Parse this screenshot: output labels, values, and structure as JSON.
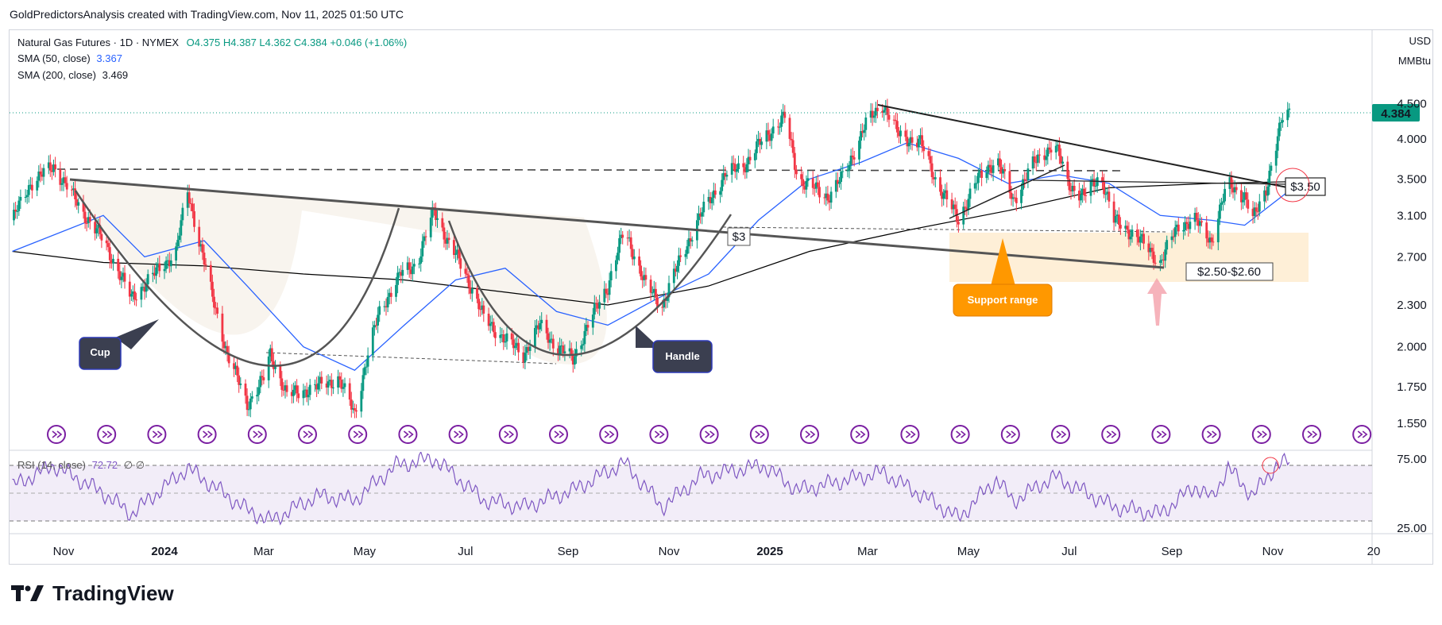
{
  "header": {
    "text": "GoldPredictorsAnalysis created with TradingView.com, Nov 11, 2025 01:50 UTC"
  },
  "legend": {
    "symbol": "Natural Gas Futures · 1D · NYMEX",
    "ohlc": "O4.375  H4.387  L4.362  C4.384  +0.046 (+1.06%)",
    "sma50_label": "SMA (50, close)",
    "sma50_value": "3.367",
    "sma200_label": "SMA (200, close)",
    "sma200_value": "3.469",
    "rsi_label": "RSI (14, close)",
    "rsi_value": "72.72",
    "rsi_extra": "∅  ∅"
  },
  "units": {
    "currency": "USD",
    "unit": "MMBtu"
  },
  "brand": {
    "name": "TradingView"
  },
  "annotations": {
    "cup": "Cup",
    "handle": "Handle",
    "support": "Support range",
    "lvl3": "$3",
    "lvl350": "$3.50",
    "lvl250": "$2.50-$2.60"
  },
  "colors": {
    "up": "#089981",
    "down": "#f23645",
    "sma50": "#2962ff",
    "sma200": "#000000",
    "rsi": "#7e57c2",
    "support": "#ff9800"
  },
  "chart_data": {
    "type": "candlestick",
    "scale": "log",
    "title": "Natural Gas Futures · 1D · NYMEX",
    "ylim": [
      1.45,
      4.85
    ],
    "y_ticks": [
      "4.500",
      "4.000",
      "3.500",
      "3.100",
      "2.700",
      "2.300",
      "2.000",
      "1.750",
      "1.550"
    ],
    "x_ticks": [
      "Nov",
      "2024",
      "Mar",
      "May",
      "Jul",
      "Sep",
      "Nov",
      "2025",
      "Mar",
      "May",
      "Jul",
      "Sep",
      "Nov",
      "20"
    ],
    "last_price": "4.384",
    "path": [
      [
        "2023-10-01",
        3.05
      ],
      [
        "2023-10-12",
        3.45
      ],
      [
        "2023-10-26",
        3.65
      ],
      [
        "2023-11-12",
        3.15
      ],
      [
        "2023-11-25",
        2.85
      ],
      [
        "2023-12-05",
        2.55
      ],
      [
        "2023-12-12",
        2.35
      ],
      [
        "2023-12-26",
        2.55
      ],
      [
        "2024-01-08",
        2.75
      ],
      [
        "2024-01-15",
        3.35
      ],
      [
        "2024-01-22",
        2.85
      ],
      [
        "2024-01-30",
        2.35
      ],
      [
        "2024-02-08",
        1.95
      ],
      [
        "2024-02-20",
        1.65
      ],
      [
        "2024-03-01",
        1.8
      ],
      [
        "2024-03-05",
        1.95
      ],
      [
        "2024-03-15",
        1.7
      ],
      [
        "2024-04-02",
        1.75
      ],
      [
        "2024-04-15",
        1.8
      ],
      [
        "2024-04-25",
        1.6
      ],
      [
        "2024-05-10",
        2.25
      ],
      [
        "2024-05-23",
        2.55
      ],
      [
        "2024-06-02",
        2.65
      ],
      [
        "2024-06-12",
        3.15
      ],
      [
        "2024-06-20",
        2.85
      ],
      [
        "2024-07-01",
        2.55
      ],
      [
        "2024-07-12",
        2.2
      ],
      [
        "2024-07-25",
        2.05
      ],
      [
        "2024-08-05",
        1.95
      ],
      [
        "2024-08-15",
        2.15
      ],
      [
        "2024-08-25",
        2.0
      ],
      [
        "2024-09-04",
        1.92
      ],
      [
        "2024-09-15",
        2.2
      ],
      [
        "2024-09-25",
        2.45
      ],
      [
        "2024-10-05",
        2.95
      ],
      [
        "2024-10-18",
        2.45
      ],
      [
        "2024-10-28",
        2.3
      ],
      [
        "2024-11-10",
        2.75
      ],
      [
        "2024-11-20",
        3.1
      ],
      [
        "2024-12-05",
        3.55
      ],
      [
        "2024-12-18",
        3.7
      ],
      [
        "2024-12-28",
        4.0
      ],
      [
        "2025-01-10",
        4.3
      ],
      [
        "2025-01-18",
        3.5
      ],
      [
        "2025-02-05",
        3.3
      ],
      [
        "2025-02-15",
        3.55
      ],
      [
        "2025-02-28",
        4.2
      ],
      [
        "2025-03-10",
        4.5
      ],
      [
        "2025-03-20",
        4.05
      ],
      [
        "2025-04-02",
        3.95
      ],
      [
        "2025-04-12",
        3.45
      ],
      [
        "2025-04-25",
        3.05
      ],
      [
        "2025-05-05",
        3.45
      ],
      [
        "2025-05-18",
        3.75
      ],
      [
        "2025-05-28",
        3.25
      ],
      [
        "2025-06-08",
        3.65
      ],
      [
        "2025-06-22",
        3.95
      ],
      [
        "2025-06-30",
        3.45
      ],
      [
        "2025-07-10",
        3.3
      ],
      [
        "2025-07-20",
        3.55
      ],
      [
        "2025-07-28",
        3.05
      ],
      [
        "2025-08-10",
        2.9
      ],
      [
        "2025-08-25",
        2.65
      ],
      [
        "2025-09-05",
        3.0
      ],
      [
        "2025-09-15",
        3.05
      ],
      [
        "2025-09-25",
        2.85
      ],
      [
        "2025-10-05",
        3.45
      ],
      [
        "2025-10-15",
        3.3
      ],
      [
        "2025-10-20",
        3.05
      ],
      [
        "2025-10-28",
        3.4
      ],
      [
        "2025-11-03",
        3.9
      ],
      [
        "2025-11-07",
        4.3
      ],
      [
        "2025-11-11",
        4.384
      ]
    ],
    "sma50": [
      [
        "2023-10-01",
        2.75
      ],
      [
        "2023-11-25",
        3.1
      ],
      [
        "2023-12-20",
        2.7
      ],
      [
        "2024-01-25",
        2.85
      ],
      [
        "2024-02-20",
        2.45
      ],
      [
        "2024-03-25",
        2.0
      ],
      [
        "2024-04-25",
        1.85
      ],
      [
        "2024-05-25",
        2.15
      ],
      [
        "2024-06-25",
        2.5
      ],
      [
        "2024-07-25",
        2.6
      ],
      [
        "2024-08-25",
        2.25
      ],
      [
        "2024-09-25",
        2.15
      ],
      [
        "2024-10-25",
        2.35
      ],
      [
        "2024-11-25",
        2.55
      ],
      [
        "2024-12-25",
        3.05
      ],
      [
        "2025-01-25",
        3.5
      ],
      [
        "2025-02-25",
        3.7
      ],
      [
        "2025-03-25",
        3.95
      ],
      [
        "2025-04-25",
        3.75
      ],
      [
        "2025-05-25",
        3.45
      ],
      [
        "2025-06-25",
        3.55
      ],
      [
        "2025-07-25",
        3.45
      ],
      [
        "2025-08-25",
        3.1
      ],
      [
        "2025-09-25",
        3.05
      ],
      [
        "2025-10-15",
        3.0
      ],
      [
        "2025-11-11",
        3.367
      ]
    ],
    "sma200": [
      [
        "2023-10-01",
        2.75
      ],
      [
        "2023-11-25",
        2.65
      ],
      [
        "2024-01-25",
        2.62
      ],
      [
        "2024-03-25",
        2.55
      ],
      [
        "2024-05-25",
        2.5
      ],
      [
        "2024-07-25",
        2.4
      ],
      [
        "2024-09-25",
        2.3
      ],
      [
        "2024-11-25",
        2.45
      ],
      [
        "2025-01-25",
        2.75
      ],
      [
        "2025-03-25",
        2.95
      ],
      [
        "2025-05-25",
        3.15
      ],
      [
        "2025-07-25",
        3.4
      ],
      [
        "2025-09-25",
        3.45
      ],
      [
        "2025-11-11",
        3.469
      ]
    ],
    "rsi": {
      "levels": [
        70,
        30
      ],
      "ticks": [
        "75.00",
        "25.00"
      ],
      "path": [
        [
          "2023-10-01",
          55
        ],
        [
          "2023-10-26",
          70
        ],
        [
          "2023-11-25",
          50
        ],
        [
          "2023-12-12",
          35
        ],
        [
          "2024-01-15",
          68
        ],
        [
          "2024-02-20",
          38
        ],
        [
          "2024-03-05",
          30
        ],
        [
          "2024-04-02",
          48
        ],
        [
          "2024-04-25",
          45
        ],
        [
          "2024-05-20",
          70
        ],
        [
          "2024-06-12",
          75
        ],
        [
          "2024-07-12",
          45
        ],
        [
          "2024-08-05",
          40
        ],
        [
          "2024-09-04",
          52
        ],
        [
          "2024-10-05",
          72
        ],
        [
          "2024-10-28",
          40
        ],
        [
          "2024-11-20",
          62
        ],
        [
          "2024-12-28",
          70
        ],
        [
          "2025-01-18",
          52
        ],
        [
          "2025-03-10",
          65
        ],
        [
          "2025-04-12",
          42
        ],
        [
          "2025-04-25",
          32
        ],
        [
          "2025-05-18",
          60
        ],
        [
          "2025-05-28",
          44
        ],
        [
          "2025-06-22",
          62
        ],
        [
          "2025-07-28",
          40
        ],
        [
          "2025-08-25",
          35
        ],
        [
          "2025-09-15",
          55
        ],
        [
          "2025-09-25",
          46
        ],
        [
          "2025-10-05",
          68
        ],
        [
          "2025-10-20",
          48
        ],
        [
          "2025-11-03",
          70
        ],
        [
          "2025-11-11",
          72.72
        ]
      ]
    }
  }
}
